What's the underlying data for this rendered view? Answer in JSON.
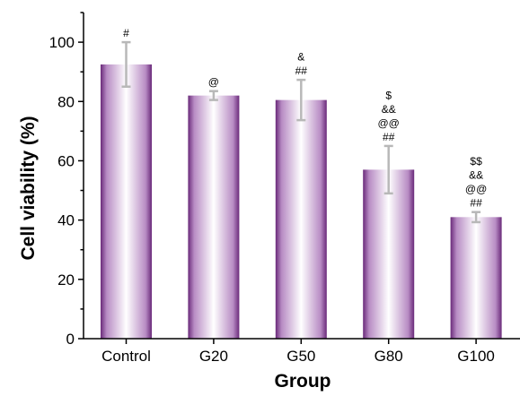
{
  "chart_data": {
    "type": "bar",
    "title": "",
    "xlabel": "Group",
    "ylabel": "Cell viability (%)",
    "ylim": [
      0,
      110
    ],
    "yticks": [
      0,
      20,
      40,
      60,
      80,
      100
    ],
    "grid": false,
    "categories": [
      "Control",
      "G20",
      "G50",
      "G80",
      "G100"
    ],
    "values": [
      92.5,
      82,
      80.5,
      57,
      41
    ],
    "errors": [
      7.5,
      1.5,
      6.8,
      8,
      1.7
    ],
    "annotations": [
      [
        "#"
      ],
      [
        "@"
      ],
      [
        "&",
        "##"
      ],
      [
        "$",
        "&&",
        "@@",
        "##"
      ],
      [
        "$$",
        "&&",
        "@@",
        "##"
      ]
    ],
    "colors": {
      "bar_edge": "#6a2a7a",
      "bar_center": "#ffffff",
      "error_bar": "#b8b8b8",
      "axis": "#000000"
    }
  }
}
